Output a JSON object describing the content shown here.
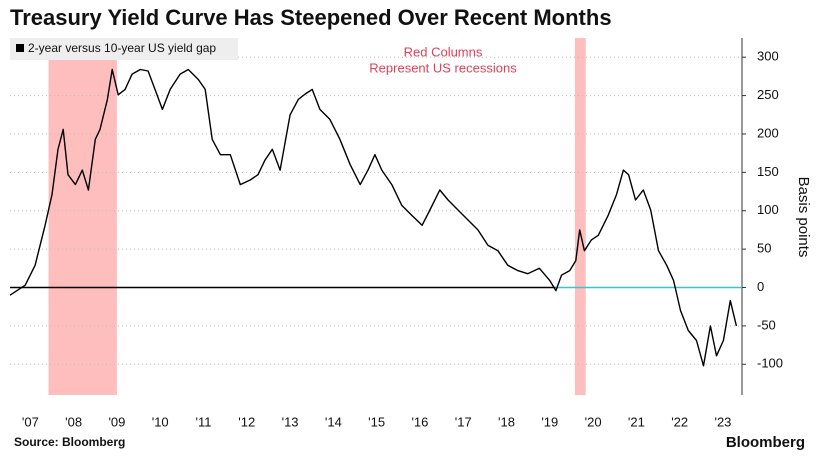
{
  "chart_data": {
    "type": "line",
    "title": "Treasury Yield Curve Has Steepened Over Recent Months",
    "y_label": "Basis points",
    "source": "Source: Bloomberg",
    "brand": "Bloomberg",
    "annotation": [
      "Red Columns",
      "Represent US recessions"
    ],
    "annotation_color": "#e0405a",
    "recessions": [
      [
        2007.92,
        2009.5
      ],
      [
        2020.08,
        2020.33
      ]
    ],
    "recession_color": "#ffb3b3",
    "reference_line": {
      "value": 0,
      "color": "#000000",
      "highlight_from": 2019.63,
      "highlight_color": "#33c6d6"
    },
    "grid": true,
    "legend": "top-left",
    "xlim": [
      2007.03,
      2023.94
    ],
    "ylim": [
      -140,
      325
    ],
    "xticks": [
      {
        "value": 2007.5,
        "label": "'07"
      },
      {
        "value": 2008.5,
        "label": "'08"
      },
      {
        "value": 2009.5,
        "label": "'09"
      },
      {
        "value": 2010.5,
        "label": "'10"
      },
      {
        "value": 2011.5,
        "label": "'11"
      },
      {
        "value": 2012.5,
        "label": "'12"
      },
      {
        "value": 2013.5,
        "label": "'13"
      },
      {
        "value": 2014.5,
        "label": "'14"
      },
      {
        "value": 2015.5,
        "label": "'15"
      },
      {
        "value": 2016.5,
        "label": "'16"
      },
      {
        "value": 2017.5,
        "label": "'17"
      },
      {
        "value": 2018.5,
        "label": "'18"
      },
      {
        "value": 2019.5,
        "label": "'19"
      },
      {
        "value": 2020.5,
        "label": "'20"
      },
      {
        "value": 2021.5,
        "label": "'21"
      },
      {
        "value": 2022.5,
        "label": "'22"
      },
      {
        "value": 2023.5,
        "label": "'23"
      }
    ],
    "yticks": [
      -100,
      -50,
      0,
      50,
      100,
      150,
      200,
      250,
      300
    ],
    "x": [
      2007.03,
      2007.38,
      2007.61,
      2007.84,
      2008.0,
      2008.14,
      2008.26,
      2008.37,
      2008.54,
      2008.7,
      2008.84,
      2009.0,
      2009.11,
      2009.28,
      2009.39,
      2009.53,
      2009.69,
      2009.85,
      2010.04,
      2010.22,
      2010.38,
      2010.55,
      2010.73,
      2010.96,
      2011.15,
      2011.38,
      2011.54,
      2011.7,
      2011.89,
      2012.12,
      2012.35,
      2012.58,
      2012.76,
      2012.92,
      2013.09,
      2013.27,
      2013.5,
      2013.69,
      2013.85,
      2014.01,
      2014.19,
      2014.42,
      2014.65,
      2014.89,
      2015.12,
      2015.3,
      2015.46,
      2015.62,
      2015.85,
      2016.08,
      2016.31,
      2016.55,
      2016.73,
      2016.96,
      2017.15,
      2017.38,
      2017.61,
      2017.84,
      2018.07,
      2018.3,
      2018.53,
      2018.76,
      2018.99,
      2019.26,
      2019.5,
      2019.64,
      2019.77,
      2019.96,
      2020.1,
      2020.19,
      2020.3,
      2020.46,
      2020.62,
      2020.85,
      2021.04,
      2021.2,
      2021.32,
      2021.48,
      2021.66,
      2021.83,
      2022.01,
      2022.2,
      2022.36,
      2022.52,
      2022.7,
      2022.89,
      2023.05,
      2023.21,
      2023.35,
      2023.51,
      2023.67,
      2023.81
    ],
    "series": [
      {
        "name": "2-year versus 10-year US yield gap",
        "color": "#000000",
        "values": [
          -10,
          3,
          29,
          81,
          121,
          180,
          206,
          147,
          134,
          153,
          127,
          193,
          206,
          245,
          284,
          251,
          258,
          278,
          284,
          282,
          258,
          232,
          258,
          278,
          284,
          271,
          258,
          193,
          173,
          173,
          134,
          140,
          147,
          166,
          180,
          153,
          225,
          245,
          252,
          258,
          232,
          219,
          193,
          160,
          134,
          153,
          173,
          153,
          134,
          107,
          94,
          81,
          101,
          127,
          114,
          101,
          88,
          75,
          55,
          48,
          29,
          22,
          18,
          25,
          9,
          -4,
          16,
          22,
          35,
          75,
          48,
          62,
          68,
          94,
          121,
          153,
          147,
          114,
          127,
          101,
          48,
          29,
          9,
          -30,
          -56,
          -69,
          -102,
          -50,
          -89,
          -69,
          -17,
          -50
        ]
      }
    ]
  }
}
